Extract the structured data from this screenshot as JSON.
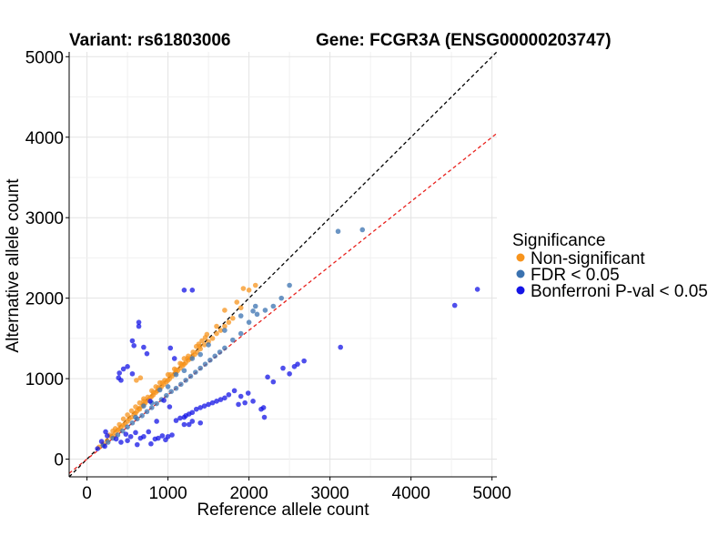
{
  "chart_data": {
    "type": "scatter",
    "title_left": "Variant: rs61803006",
    "title_right": "Gene: FCGR3A (ENSG00000203747)",
    "xlabel": "Reference allele count",
    "ylabel": "Alternative allele count",
    "xlim": [
      -220,
      5060
    ],
    "ylim": [
      -220,
      5060
    ],
    "xticks": [
      0,
      1000,
      2000,
      3000,
      4000,
      5000
    ],
    "yticks": [
      0,
      1000,
      2000,
      3000,
      4000,
      5000
    ],
    "grid": true,
    "reference_lines": [
      {
        "name": "identity",
        "slope": 1.0,
        "color": "#000000",
        "style": "dashed"
      },
      {
        "name": "expected_ratio",
        "slope": 0.8,
        "color": "#e8221e",
        "style": "dashed"
      }
    ],
    "legend": {
      "title": "Significance",
      "placement": "right",
      "entries": [
        {
          "label": "Non-significant",
          "color": "#f7941d"
        },
        {
          "label": "FDR < 0.05",
          "color": "#3a72b0"
        },
        {
          "label": "Bonferroni P-val < 0.05",
          "color": "#1414e6"
        }
      ]
    },
    "series": [
      {
        "name": "Non-significant",
        "color": "#f7941d",
        "points": [
          [
            150,
            150
          ],
          [
            200,
            190
          ],
          [
            250,
            230
          ],
          [
            300,
            280
          ],
          [
            320,
            290
          ],
          [
            350,
            330
          ],
          [
            380,
            360
          ],
          [
            400,
            370
          ],
          [
            420,
            400
          ],
          [
            450,
            420
          ],
          [
            470,
            440
          ],
          [
            500,
            470
          ],
          [
            520,
            500
          ],
          [
            550,
            520
          ],
          [
            580,
            560
          ],
          [
            600,
            570
          ],
          [
            620,
            600
          ],
          [
            650,
            620
          ],
          [
            680,
            660
          ],
          [
            700,
            680
          ],
          [
            720,
            700
          ],
          [
            750,
            730
          ],
          [
            780,
            760
          ],
          [
            800,
            780
          ],
          [
            820,
            800
          ],
          [
            850,
            830
          ],
          [
            870,
            850
          ],
          [
            900,
            880
          ],
          [
            920,
            900
          ],
          [
            950,
            930
          ],
          [
            980,
            960
          ],
          [
            1000,
            980
          ],
          [
            1020,
            1000
          ],
          [
            1050,
            1030
          ],
          [
            1080,
            1060
          ],
          [
            1100,
            1080
          ],
          [
            1120,
            1100
          ],
          [
            1150,
            1130
          ],
          [
            1180,
            1160
          ],
          [
            1200,
            1180
          ],
          [
            1220,
            1200
          ],
          [
            1250,
            1230
          ],
          [
            1280,
            1250
          ],
          [
            1300,
            1280
          ],
          [
            1330,
            1300
          ],
          [
            1360,
            1330
          ],
          [
            1400,
            1370
          ],
          [
            1450,
            1420
          ],
          [
            1500,
            1460
          ],
          [
            1550,
            1500
          ],
          [
            1600,
            1560
          ],
          [
            1650,
            1600
          ],
          [
            1700,
            1650
          ],
          [
            1750,
            1700
          ],
          [
            1800,
            1750
          ],
          [
            1350,
            1400
          ],
          [
            1380,
            1430
          ],
          [
            1420,
            1470
          ],
          [
            1460,
            1510
          ],
          [
            1480,
            1550
          ],
          [
            1250,
            1280
          ],
          [
            1200,
            1250
          ],
          [
            1150,
            1190
          ],
          [
            1080,
            1120
          ],
          [
            1000,
            1050
          ],
          [
            900,
            950
          ],
          [
            850,
            900
          ],
          [
            800,
            850
          ],
          [
            700,
            750
          ],
          [
            650,
            700
          ],
          [
            600,
            650
          ],
          [
            550,
            600
          ],
          [
            500,
            550
          ],
          [
            450,
            500
          ],
          [
            400,
            430
          ],
          [
            350,
            380
          ],
          [
            320,
            350
          ],
          [
            280,
            300
          ],
          [
            700,
            720
          ],
          [
            750,
            770
          ],
          [
            820,
            830
          ],
          [
            880,
            890
          ],
          [
            930,
            950
          ],
          [
            960,
            980
          ],
          [
            1030,
            1050
          ],
          [
            1100,
            1110
          ],
          [
            1170,
            1180
          ],
          [
            1240,
            1250
          ],
          [
            1310,
            1330
          ],
          [
            1390,
            1400
          ],
          [
            1930,
            2120
          ],
          [
            1700,
            1850
          ],
          [
            2080,
            2160
          ],
          [
            2000,
            2100
          ],
          [
            1850,
            1950
          ],
          [
            1600,
            1650
          ],
          [
            660,
            1010
          ],
          [
            610,
            980
          ],
          [
            1900,
            1880
          ],
          [
            640,
            630
          ]
        ]
      },
      {
        "name": "FDR < 0.05",
        "color": "#3a72b0",
        "points": [
          [
            200,
            170
          ],
          [
            260,
            210
          ],
          [
            320,
            260
          ],
          [
            380,
            300
          ],
          [
            440,
            350
          ],
          [
            500,
            400
          ],
          [
            560,
            450
          ],
          [
            620,
            500
          ],
          [
            680,
            540
          ],
          [
            740,
            590
          ],
          [
            800,
            640
          ],
          [
            860,
            690
          ],
          [
            920,
            740
          ],
          [
            980,
            790
          ],
          [
            1040,
            840
          ],
          [
            1100,
            880
          ],
          [
            1160,
            930
          ],
          [
            1220,
            980
          ],
          [
            1280,
            1030
          ],
          [
            1340,
            1080
          ],
          [
            1400,
            1130
          ],
          [
            1460,
            1180
          ],
          [
            1520,
            1230
          ],
          [
            1580,
            1280
          ],
          [
            1640,
            1330
          ],
          [
            1700,
            1380
          ],
          [
            1800,
            1480
          ],
          [
            1900,
            1560
          ],
          [
            2000,
            1700
          ],
          [
            2100,
            1800
          ],
          [
            2200,
            1850
          ],
          [
            2300,
            1900
          ],
          [
            2400,
            2000
          ],
          [
            2500,
            2160
          ],
          [
            2080,
            1900
          ],
          [
            3100,
            2830
          ],
          [
            3400,
            2850
          ],
          [
            700,
            660
          ],
          [
            900,
            860
          ],
          [
            1100,
            1050
          ],
          [
            1300,
            1250
          ],
          [
            1500,
            1420
          ],
          [
            1700,
            1600
          ],
          [
            1900,
            1780
          ],
          [
            2050,
            1840
          ],
          [
            600,
            520
          ],
          [
            800,
            700
          ],
          [
            1000,
            900
          ],
          [
            1200,
            1100
          ],
          [
            1400,
            1300
          ]
        ]
      },
      {
        "name": "Bonferroni P-val < 0.05",
        "color": "#1414e6",
        "points": [
          [
            130,
            130
          ],
          [
            180,
            220
          ],
          [
            250,
            290
          ],
          [
            220,
            160
          ],
          [
            360,
            250
          ],
          [
            420,
            210
          ],
          [
            500,
            230
          ],
          [
            480,
            310
          ],
          [
            540,
            280
          ],
          [
            600,
            330
          ],
          [
            620,
            180
          ],
          [
            660,
            260
          ],
          [
            700,
            280
          ],
          [
            760,
            340
          ],
          [
            790,
            190
          ],
          [
            840,
            250
          ],
          [
            880,
            260
          ],
          [
            930,
            290
          ],
          [
            970,
            240
          ],
          [
            1000,
            280
          ],
          [
            1050,
            300
          ],
          [
            1100,
            480
          ],
          [
            1150,
            510
          ],
          [
            1200,
            520
          ],
          [
            1220,
            540
          ],
          [
            1260,
            560
          ],
          [
            1300,
            580
          ],
          [
            1350,
            620
          ],
          [
            1400,
            640
          ],
          [
            1450,
            660
          ],
          [
            1500,
            680
          ],
          [
            1550,
            700
          ],
          [
            1600,
            720
          ],
          [
            1650,
            740
          ],
          [
            1700,
            760
          ],
          [
            1750,
            800
          ],
          [
            1820,
            850
          ],
          [
            1870,
            680
          ],
          [
            1900,
            780
          ],
          [
            1950,
            700
          ],
          [
            1990,
            820
          ],
          [
            2050,
            720
          ],
          [
            2150,
            620
          ],
          [
            2180,
            640
          ],
          [
            2190,
            520
          ],
          [
            2230,
            1020
          ],
          [
            2300,
            960
          ],
          [
            2420,
            1130
          ],
          [
            2500,
            1060
          ],
          [
            2560,
            1150
          ],
          [
            2600,
            1180
          ],
          [
            2680,
            1220
          ],
          [
            3130,
            1390
          ],
          [
            1080,
            1250
          ],
          [
            1030,
            1380
          ],
          [
            580,
            1410
          ],
          [
            560,
            1470
          ],
          [
            700,
            1390
          ],
          [
            740,
            1310
          ],
          [
            640,
            1650
          ],
          [
            640,
            1700
          ],
          [
            1200,
            2100
          ],
          [
            1300,
            2100
          ],
          [
            400,
            1070
          ],
          [
            500,
            1150
          ],
          [
            450,
            1120
          ],
          [
            560,
            1060
          ],
          [
            390,
            1010
          ],
          [
            420,
            980
          ],
          [
            950,
            730
          ],
          [
            1020,
            650
          ],
          [
            780,
            720
          ],
          [
            860,
            470
          ],
          [
            1200,
            430
          ],
          [
            1260,
            430
          ],
          [
            1300,
            470
          ],
          [
            1400,
            450
          ],
          [
            4540,
            1910
          ],
          [
            4820,
            2110
          ],
          [
            230,
            340
          ]
        ]
      }
    ]
  }
}
